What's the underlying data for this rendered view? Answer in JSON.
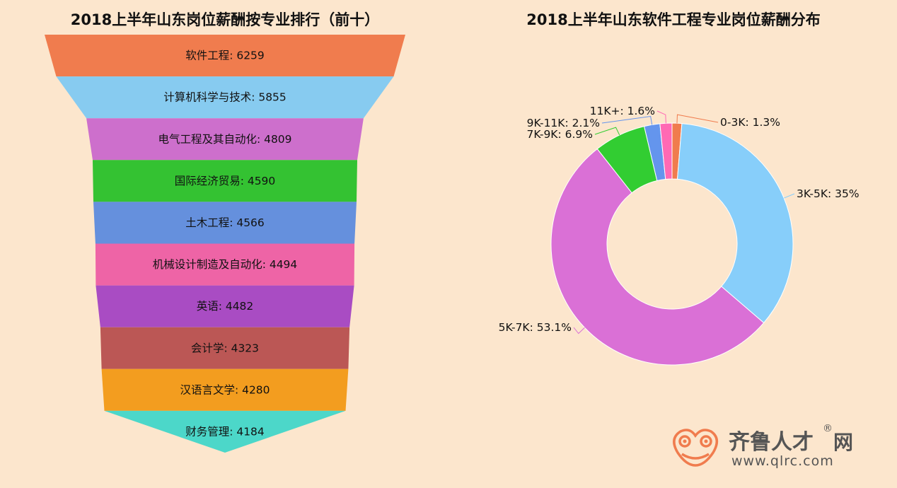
{
  "chart_data": [
    {
      "type": "funnel",
      "title": "2018上半年山东岗位薪酬按专业排行（前十）",
      "categories": [
        "软件工程",
        "计算机科学与技术",
        "电气工程及其自动化",
        "国际经济贸易",
        "土木工程",
        "机械设计制造及自动化",
        "英语",
        "会计学",
        "汉语言文学",
        "财务管理"
      ],
      "values": [
        6259,
        5855,
        4809,
        4590,
        4566,
        4494,
        4482,
        4323,
        4280,
        4184
      ],
      "colors": [
        "#f07c4e",
        "#87cbf0",
        "#cd6fcc",
        "#34c232",
        "#6590dd",
        "#ee64a6",
        "#a94cc3",
        "#bb5755",
        "#f39d1f",
        "#4cd7c9"
      ]
    },
    {
      "type": "pie",
      "title": "2018上半年山东软件工程专业岗位薪酬分布",
      "categories": [
        "0-3K",
        "3K-5K",
        "5K-7K",
        "7K-9K",
        "9K-11K",
        "11K+"
      ],
      "values": [
        1.3,
        35,
        53.1,
        6.9,
        2.1,
        1.6
      ],
      "value_labels": [
        "1.3%",
        "35%",
        "53.1%",
        "6.9%",
        "2.1%",
        "1.6%"
      ],
      "colors": [
        "#f07c4e",
        "#87cefa",
        "#da70d6",
        "#32cd32",
        "#6495ed",
        "#ff69b4"
      ],
      "donut": true,
      "label_separator": ":  "
    }
  ],
  "logo": {
    "name": "齐鲁人才",
    "suffix": "网",
    "registered": "®",
    "url": "www.qlrc.com",
    "colors": {
      "frog": "#f07c4e",
      "text": "#555555"
    }
  }
}
